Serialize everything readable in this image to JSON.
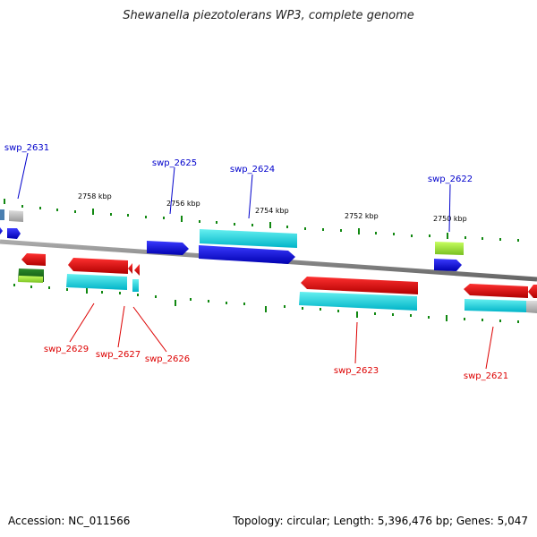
{
  "title": "Shewanella piezotolerans WP3, complete genome",
  "footer": {
    "accession": "Accession: NC_011566",
    "topology": "Topology: circular; Length: 5,396,476 bp; Genes: 5,047"
  },
  "colors": {
    "forward_gene": "#0000ee",
    "reverse_gene": "#ee0000",
    "forward_cds": "#00dddd",
    "reverse_cds": "#00dddd",
    "other_feature": "#99dd22",
    "backbone": "#888888",
    "tick": "#118811"
  },
  "scale_labels": [
    "2758 kbp",
    "2756 kbp",
    "2754 kbp",
    "2752 kbp",
    "2750 kbp"
  ],
  "forward_labels": [
    "swp_2631",
    "swp_2625",
    "swp_2624",
    "swp_2622"
  ],
  "reverse_labels": [
    "swp_2629",
    "swp_2627",
    "swp_2626",
    "swp_2623",
    "swp_2621"
  ]
}
